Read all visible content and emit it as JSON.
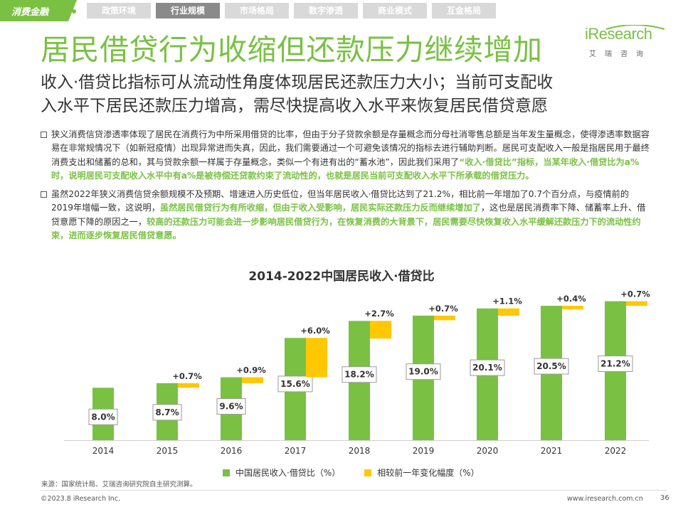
{
  "header": {
    "section_tag": "消费金融",
    "nav_tabs": [
      "政策环境",
      "行业规模",
      "市场格局",
      "数字渗透",
      "商业模式",
      "互金格局"
    ],
    "active_tab": "行业规模",
    "logo_main": "iResearch",
    "logo_sub": "艾瑞咨询"
  },
  "title": "居民借贷行为收缩但还款压力继续增加",
  "subtitle": {
    "line1": "收入·借贷比指标可从流动性角度体现居民还款压力大小；当前可支配收",
    "line2": "入水平下居民还款压力增高，需尽快提高收入水平来恢复居民借贷意愿"
  },
  "bullets": [
    {
      "normal1": "狭义消费信贷渗透率体现了居民在消费行为中所采用借贷的比率，但由于分子贷款余额是存量概念而分母社消零售总额是当年发生量概念，使得渗透率数据容易在非常规情况下（如新冠疫情）出现异常进而失真，因此，我们需要通过一个可避免该情况的指标去进行辅助判断。居民可支配收入一般是指居民用于最终消费支出和储蓄的总和，其与贷款余额一样属于存量概念，类似一个有进有出的“蓄水池”，因此我们采用了",
      "highlight1": "“收入·借贷比”指标，当某年收入·借贷比为a%时，说明居民可支配收入水平中有a%是被待偿还贷款约束了流动性的，也就是居民当前可支配收入水平下所承载的借贷压力。",
      "normal2": "",
      "highlight2": ""
    },
    {
      "normal1": "虽然2022年狭义消费信贷余额规模不及预期、增速进入历史低位，但当年居民收入·借贷比达到了21.2%，相比前一年增加了0.7个百分点，与疫情前的2019年增幅一致，这说明，",
      "highlight1": "虽然居民借贷行为有所收缩，但由于收入受影响，居民实际还款压力反而继续增加了",
      "normal2": "，这也是居民消费率下降、储蓄率上升、借贷意愿下降的原因之一，",
      "highlight2": "较高的还款压力可能会进一步影响居民借贷行为，在恢复消费的大背景下，居民需要尽快恢复收入水平缓解还款压力下的流动性约束，进而逐步恢复居民借贷意愿。"
    }
  ],
  "chart_data": {
    "type": "bar",
    "title": "2014-2022中国居民收入·借贷比",
    "categories": [
      "2014",
      "2015",
      "2016",
      "2017",
      "2018",
      "2019",
      "2020",
      "2021",
      "2022"
    ],
    "series": [
      {
        "name": "中国居民收入·借贷比（%）",
        "values": [
          8.0,
          8.7,
          9.6,
          15.6,
          18.2,
          19.0,
          20.1,
          20.5,
          21.2
        ],
        "labels": [
          "8.0%",
          "8.7%",
          "9.6%",
          "15.6%",
          "18.2%",
          "19.0%",
          "20.1%",
          "20.5%",
          "21.2%"
        ]
      },
      {
        "name": "相较前一年变化幅度（%）",
        "values": [
          null,
          0.7,
          0.9,
          6.0,
          2.7,
          0.7,
          1.1,
          0.4,
          0.7
        ],
        "labels": [
          "",
          "+0.7%",
          "+0.9%",
          "+6.0%",
          "+2.7%",
          "+0.7%",
          "+1.1%",
          "+0.4%",
          "+0.7%"
        ]
      }
    ],
    "ylim": [
      0,
      23
    ],
    "colors": {
      "primary": "#7ac143",
      "change": "#ffc800"
    },
    "legend_position": "bottom"
  },
  "source": "来源：国家统计局、艾瑞咨询研究院自主研究测算。",
  "footer": {
    "copyright": "©2023.8 iResearch Inc.",
    "website": "www.iresearch.com.cn",
    "page": "36"
  },
  "colors": {
    "brand_green": "#7ac143",
    "accent_yellow": "#ffc800",
    "text": "#333333"
  }
}
